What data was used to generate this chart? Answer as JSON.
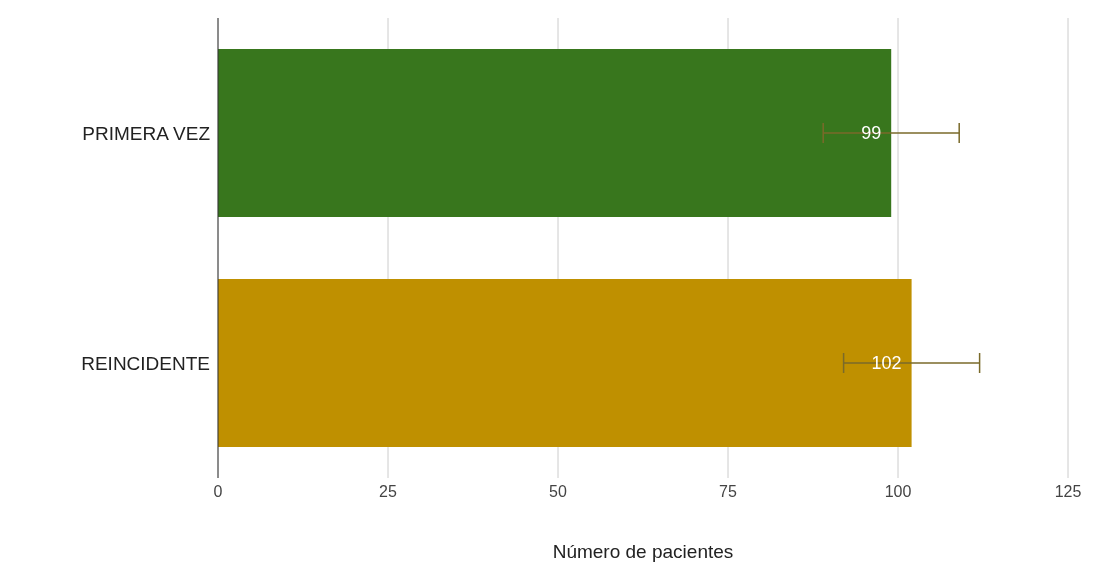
{
  "chart_data": {
    "type": "bar",
    "orientation": "horizontal",
    "xlabel": "Número de pacientes",
    "categories": [
      "PRIMERA VEZ",
      "REINCIDENTE"
    ],
    "values": [
      99,
      102
    ],
    "colors": [
      "#38761d",
      "#bf9000"
    ],
    "errors": [
      10,
      10
    ],
    "data_labels": true,
    "xlim": [
      0,
      125
    ],
    "xticks": [
      0,
      25,
      50,
      75,
      100,
      125
    ],
    "grid": "x",
    "legend": false
  }
}
